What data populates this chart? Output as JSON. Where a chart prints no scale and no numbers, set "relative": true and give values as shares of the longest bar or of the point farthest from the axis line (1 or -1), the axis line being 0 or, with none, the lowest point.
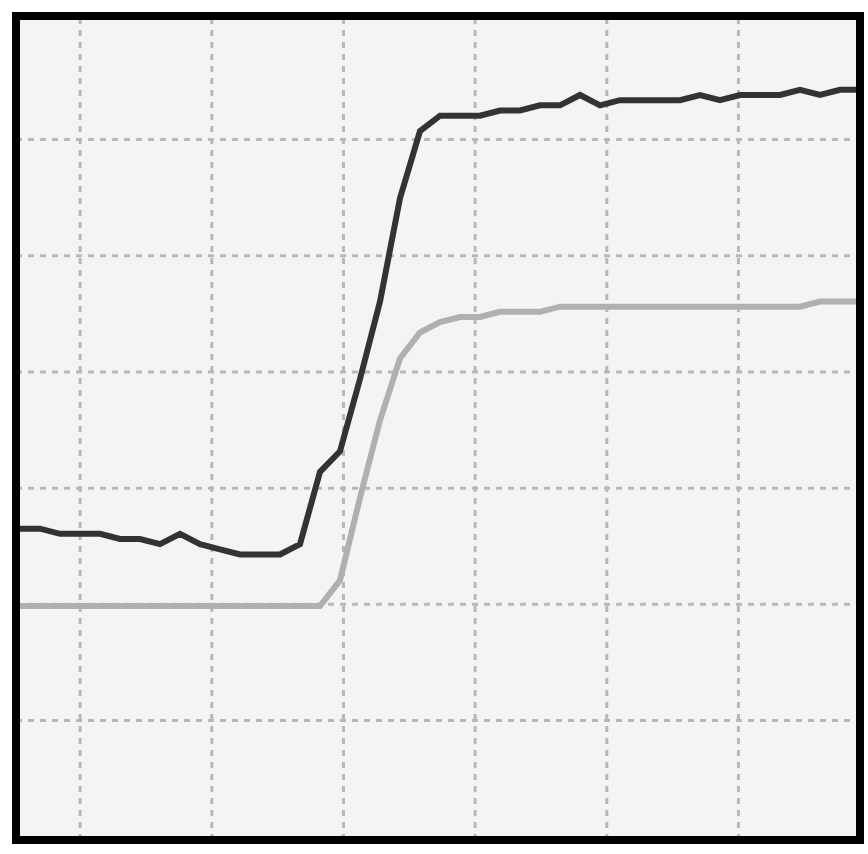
{
  "chart_data": {
    "type": "line",
    "relative": true,
    "categories": [
      null,
      null,
      null,
      null,
      null,
      null,
      null,
      null,
      null,
      null,
      null,
      null,
      null,
      null,
      null,
      null,
      null,
      null,
      null,
      null,
      null,
      null,
      null,
      null,
      null,
      null,
      null,
      null,
      null,
      null,
      null,
      null,
      null,
      null,
      null,
      null,
      null,
      null,
      null,
      null,
      null,
      null,
      null
    ],
    "series": [
      {
        "color": "#333333",
        "values": [
          0.15,
          0.15,
          0.14,
          0.14,
          0.14,
          0.13,
          0.13,
          0.12,
          0.14,
          0.12,
          0.11,
          0.1,
          0.1,
          0.1,
          0.12,
          0.26,
          0.3,
          0.44,
          0.59,
          0.79,
          0.92,
          0.95,
          0.95,
          0.95,
          0.96,
          0.96,
          0.97,
          0.97,
          0.99,
          0.97,
          0.98,
          0.98,
          0.98,
          0.98,
          0.99,
          0.98,
          0.99,
          0.99,
          0.99,
          1.0,
          0.99,
          1.0,
          1.0
        ]
      },
      {
        "color": "#b0b0b0",
        "values": [
          0,
          0,
          0,
          0,
          0,
          0,
          0,
          0,
          0,
          0,
          0,
          0,
          0,
          0,
          0,
          0,
          0.05,
          0.21,
          0.36,
          0.48,
          0.53,
          0.55,
          0.56,
          0.56,
          0.57,
          0.57,
          0.57,
          0.58,
          0.58,
          0.58,
          0.58,
          0.58,
          0.58,
          0.58,
          0.58,
          0.58,
          0.58,
          0.58,
          0.58,
          0.58,
          0.59,
          0.59,
          0.59
        ]
      }
    ],
    "grid": true,
    "marker": "none",
    "line_style": "solid"
  }
}
